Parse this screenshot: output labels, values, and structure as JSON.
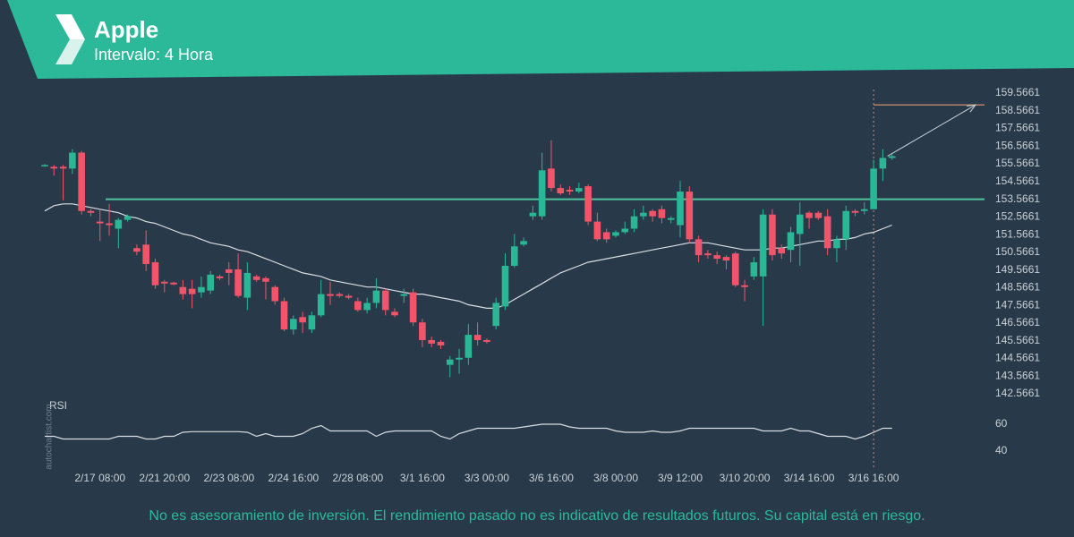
{
  "chart_data": {
    "type": "candlestick",
    "title": "Apple",
    "subtitle": "Intervalo: 4 Hora",
    "up_color": "#2ab795",
    "down_color": "#f2546a",
    "ylim": [
      142.36,
      159.77
    ],
    "yticks": [
      159.5661,
      158.5661,
      157.5661,
      156.5661,
      155.5661,
      154.5661,
      153.5661,
      152.5661,
      151.5661,
      150.5661,
      149.5661,
      148.5661,
      147.5661,
      146.5661,
      145.5661,
      144.5661,
      143.5661,
      142.5661
    ],
    "categories": [
      null,
      null,
      null,
      null,
      null,
      null,
      "2/17 08:00",
      null,
      null,
      null,
      null,
      null,
      null,
      "2/21 20:00",
      null,
      null,
      null,
      null,
      null,
      null,
      "2/23 08:00",
      null,
      null,
      null,
      null,
      null,
      null,
      "2/24 16:00",
      null,
      null,
      null,
      null,
      null,
      null,
      "2/28 08:00",
      null,
      null,
      null,
      null,
      null,
      null,
      "3/1 16:00",
      null,
      null,
      null,
      null,
      null,
      null,
      "3/3 00:00",
      null,
      null,
      null,
      null,
      null,
      null,
      "3/6 16:00",
      null,
      null,
      null,
      null,
      null,
      null,
      "3/8 00:00",
      null,
      null,
      null,
      null,
      null,
      null,
      "3/9 12:00",
      null,
      null,
      null,
      null,
      null,
      null,
      "3/10 20:00",
      null,
      null,
      null,
      null,
      null,
      null,
      "3/14 16:00",
      null,
      null,
      null,
      null,
      null,
      null,
      "3/16 16:00",
      null,
      null
    ],
    "candles": [
      {
        "o": 155.45,
        "h": 155.55,
        "l": 155.4,
        "c": 155.5
      },
      {
        "o": 155.4,
        "h": 155.5,
        "l": 154.9,
        "c": 155.3
      },
      {
        "o": 155.4,
        "h": 155.5,
        "l": 153.5,
        "c": 155.3
      },
      {
        "o": 155.3,
        "h": 156.4,
        "l": 155.0,
        "c": 156.2
      },
      {
        "o": 156.2,
        "h": 156.3,
        "l": 152.7,
        "c": 152.9
      },
      {
        "o": 152.9,
        "h": 153.0,
        "l": 152.6,
        "c": 152.8
      },
      {
        "o": 152.3,
        "h": 153.0,
        "l": 151.2,
        "c": 152.2
      },
      {
        "o": 152.2,
        "h": 153.3,
        "l": 151.5,
        "c": 152.1
      },
      {
        "o": 151.9,
        "h": 152.5,
        "l": 150.8,
        "c": 152.4
      },
      {
        "o": 152.4,
        "h": 152.7,
        "l": 152.3,
        "c": 152.6
      },
      {
        "o": 150.8,
        "h": 151.0,
        "l": 150.4,
        "c": 150.6
      },
      {
        "o": 151.0,
        "h": 151.8,
        "l": 149.5,
        "c": 149.9
      },
      {
        "o": 150.0,
        "h": 150.2,
        "l": 148.5,
        "c": 148.7
      },
      {
        "o": 148.9,
        "h": 149.0,
        "l": 148.3,
        "c": 148.8
      },
      {
        "o": 148.85,
        "h": 148.9,
        "l": 148.7,
        "c": 148.75
      },
      {
        "o": 148.6,
        "h": 149.0,
        "l": 147.9,
        "c": 148.2
      },
      {
        "o": 148.5,
        "h": 149.0,
        "l": 147.4,
        "c": 148.2
      },
      {
        "o": 148.3,
        "h": 149.2,
        "l": 148.0,
        "c": 148.6
      },
      {
        "o": 148.4,
        "h": 149.5,
        "l": 148.2,
        "c": 149.3
      },
      {
        "o": 149.2,
        "h": 149.3,
        "l": 149.0,
        "c": 149.1
      },
      {
        "o": 149.6,
        "h": 150.0,
        "l": 148.7,
        "c": 149.4
      },
      {
        "o": 149.6,
        "h": 150.5,
        "l": 148.0,
        "c": 148.1
      },
      {
        "o": 148.0,
        "h": 150.0,
        "l": 147.3,
        "c": 149.4
      },
      {
        "o": 149.2,
        "h": 149.3,
        "l": 148.9,
        "c": 149.0
      },
      {
        "o": 149.1,
        "h": 149.2,
        "l": 147.9,
        "c": 148.9
      },
      {
        "o": 148.6,
        "h": 148.7,
        "l": 147.6,
        "c": 147.8
      },
      {
        "o": 147.8,
        "h": 148.0,
        "l": 146.1,
        "c": 146.2
      },
      {
        "o": 146.2,
        "h": 147.0,
        "l": 145.9,
        "c": 146.8
      },
      {
        "o": 146.9,
        "h": 147.2,
        "l": 146.0,
        "c": 146.6
      },
      {
        "o": 146.2,
        "h": 147.2,
        "l": 146.0,
        "c": 147.0
      },
      {
        "o": 147.0,
        "h": 149.0,
        "l": 146.9,
        "c": 148.2
      },
      {
        "o": 148.2,
        "h": 148.9,
        "l": 147.6,
        "c": 148.1
      },
      {
        "o": 148.2,
        "h": 148.3,
        "l": 148.0,
        "c": 148.1
      },
      {
        "o": 148.1,
        "h": 148.2,
        "l": 147.9,
        "c": 148.0
      },
      {
        "o": 147.8,
        "h": 148.0,
        "l": 147.2,
        "c": 147.3
      },
      {
        "o": 147.3,
        "h": 148.0,
        "l": 147.1,
        "c": 147.7
      },
      {
        "o": 147.7,
        "h": 149.1,
        "l": 147.4,
        "c": 148.4
      },
      {
        "o": 148.4,
        "h": 148.5,
        "l": 147.0,
        "c": 147.3
      },
      {
        "o": 147.2,
        "h": 147.4,
        "l": 146.9,
        "c": 147.0
      },
      {
        "o": 148.1,
        "h": 148.5,
        "l": 147.7,
        "c": 148.2
      },
      {
        "o": 148.3,
        "h": 148.5,
        "l": 146.4,
        "c": 146.6
      },
      {
        "o": 146.6,
        "h": 146.8,
        "l": 145.2,
        "c": 145.6
      },
      {
        "o": 145.6,
        "h": 145.8,
        "l": 145.2,
        "c": 145.4
      },
      {
        "o": 145.5,
        "h": 145.6,
        "l": 145.1,
        "c": 145.3
      },
      {
        "o": 144.2,
        "h": 144.7,
        "l": 143.5,
        "c": 144.5
      },
      {
        "o": 144.5,
        "h": 145.1,
        "l": 143.7,
        "c": 144.6
      },
      {
        "o": 144.6,
        "h": 146.5,
        "l": 144.2,
        "c": 145.9
      },
      {
        "o": 145.9,
        "h": 146.6,
        "l": 145.3,
        "c": 145.6
      },
      {
        "o": 145.6,
        "h": 145.7,
        "l": 145.4,
        "c": 145.5
      },
      {
        "o": 146.4,
        "h": 148.0,
        "l": 146.2,
        "c": 147.7
      },
      {
        "o": 147.5,
        "h": 150.5,
        "l": 147.3,
        "c": 149.8
      },
      {
        "o": 149.8,
        "h": 151.6,
        "l": 149.7,
        "c": 150.9
      },
      {
        "o": 151.0,
        "h": 151.4,
        "l": 150.9,
        "c": 151.2
      },
      {
        "o": 152.6,
        "h": 153.2,
        "l": 152.4,
        "c": 152.8
      },
      {
        "o": 152.6,
        "h": 156.2,
        "l": 152.4,
        "c": 155.2
      },
      {
        "o": 155.3,
        "h": 156.9,
        "l": 154.0,
        "c": 154.2
      },
      {
        "o": 154.2,
        "h": 154.4,
        "l": 153.8,
        "c": 153.9
      },
      {
        "o": 154.1,
        "h": 154.3,
        "l": 153.8,
        "c": 154.0
      },
      {
        "o": 154.0,
        "h": 154.5,
        "l": 153.9,
        "c": 154.2
      },
      {
        "o": 154.3,
        "h": 154.4,
        "l": 152.1,
        "c": 152.3
      },
      {
        "o": 152.3,
        "h": 152.8,
        "l": 151.2,
        "c": 151.3
      },
      {
        "o": 151.7,
        "h": 151.9,
        "l": 151.1,
        "c": 151.3
      },
      {
        "o": 151.5,
        "h": 151.8,
        "l": 151.4,
        "c": 151.7
      },
      {
        "o": 151.7,
        "h": 152.3,
        "l": 151.6,
        "c": 151.9
      },
      {
        "o": 151.9,
        "h": 153.0,
        "l": 151.7,
        "c": 152.6
      },
      {
        "o": 152.6,
        "h": 153.2,
        "l": 152.4,
        "c": 152.8
      },
      {
        "o": 152.9,
        "h": 153.0,
        "l": 152.3,
        "c": 152.6
      },
      {
        "o": 153.0,
        "h": 153.2,
        "l": 152.2,
        "c": 152.5
      },
      {
        "o": 152.4,
        "h": 152.6,
        "l": 152.2,
        "c": 152.5
      },
      {
        "o": 152.1,
        "h": 154.6,
        "l": 151.4,
        "c": 154.0
      },
      {
        "o": 154.0,
        "h": 154.3,
        "l": 151.1,
        "c": 151.3
      },
      {
        "o": 151.3,
        "h": 151.5,
        "l": 150.0,
        "c": 150.4
      },
      {
        "o": 150.5,
        "h": 150.7,
        "l": 150.2,
        "c": 150.4
      },
      {
        "o": 150.4,
        "h": 150.6,
        "l": 149.9,
        "c": 150.2
      },
      {
        "o": 150.3,
        "h": 150.4,
        "l": 149.6,
        "c": 150.1
      },
      {
        "o": 150.5,
        "h": 150.6,
        "l": 148.6,
        "c": 148.7
      },
      {
        "o": 148.7,
        "h": 149.0,
        "l": 147.8,
        "c": 148.6
      },
      {
        "o": 149.2,
        "h": 150.3,
        "l": 149.0,
        "c": 150.0
      },
      {
        "o": 149.2,
        "h": 153.0,
        "l": 146.4,
        "c": 152.7
      },
      {
        "o": 152.7,
        "h": 153.0,
        "l": 150.1,
        "c": 150.4
      },
      {
        "o": 150.8,
        "h": 151.0,
        "l": 150.2,
        "c": 150.5
      },
      {
        "o": 150.7,
        "h": 152.0,
        "l": 150.0,
        "c": 151.7
      },
      {
        "o": 151.6,
        "h": 153.4,
        "l": 149.8,
        "c": 152.7
      },
      {
        "o": 152.8,
        "h": 152.9,
        "l": 151.9,
        "c": 152.5
      },
      {
        "o": 152.8,
        "h": 152.9,
        "l": 152.4,
        "c": 152.5
      },
      {
        "o": 152.6,
        "h": 153.0,
        "l": 150.4,
        "c": 150.8
      },
      {
        "o": 150.8,
        "h": 151.5,
        "l": 150.0,
        "c": 151.3
      },
      {
        "o": 151.3,
        "h": 153.2,
        "l": 150.7,
        "c": 152.9
      },
      {
        "o": 152.9,
        "h": 153.0,
        "l": 152.6,
        "c": 152.8
      },
      {
        "o": 152.9,
        "h": 153.4,
        "l": 152.7,
        "c": 153.0
      },
      {
        "o": 153.0,
        "h": 155.8,
        "l": 153.0,
        "c": 155.3
      },
      {
        "o": 155.3,
        "h": 156.4,
        "l": 154.6,
        "c": 155.9
      },
      {
        "o": 155.9,
        "h": 156.1,
        "l": 155.8,
        "c": 156.0
      }
    ],
    "moving_average": {
      "color": "#d8dde2",
      "values": [
        152.9,
        153.2,
        153.3,
        153.3,
        153.2,
        153.1,
        153.0,
        152.9,
        152.8,
        152.6,
        152.5,
        152.3,
        152.2,
        152.0,
        151.8,
        151.6,
        151.5,
        151.3,
        151.1,
        151.0,
        150.9,
        150.7,
        150.6,
        150.4,
        150.2,
        150.0,
        149.8,
        149.6,
        149.4,
        149.3,
        149.2,
        149.0,
        148.9,
        148.8,
        148.7,
        148.6,
        148.6,
        148.5,
        148.4,
        148.3,
        148.2,
        148.2,
        148.1,
        148.0,
        147.9,
        147.8,
        147.6,
        147.5,
        147.4,
        147.4,
        147.6,
        147.9,
        148.2,
        148.5,
        148.8,
        149.1,
        149.4,
        149.6,
        149.8,
        150.0,
        150.1,
        150.2,
        150.3,
        150.4,
        150.5,
        150.6,
        150.7,
        150.8,
        150.9,
        151.0,
        151.1,
        151.1,
        151.1,
        151.0,
        150.9,
        150.8,
        150.7,
        150.7,
        150.7,
        150.8,
        150.8,
        150.9,
        151.0,
        151.1,
        151.2,
        151.2,
        151.3,
        151.3,
        151.4,
        151.6,
        151.7,
        151.9,
        152.1
      ]
    },
    "resistance": {
      "value": 153.5661,
      "color": "#4fc39d"
    },
    "target": {
      "value": 158.9,
      "color": "#e59470"
    },
    "signal_at": "3/16 16:00",
    "rsi": {
      "type": "line",
      "label": "RSI",
      "color": "#d8dde2",
      "ylim": [
        34,
        72
      ],
      "yticks": [
        60,
        40
      ],
      "values": [
        51,
        51,
        49,
        49,
        49,
        49,
        49,
        49,
        51,
        51,
        51,
        49,
        49,
        51,
        51,
        54,
        54.5,
        54.5,
        54.5,
        54.5,
        54.5,
        54.5,
        54,
        51,
        53,
        51,
        51,
        51,
        53,
        57,
        59,
        55,
        55,
        55,
        55,
        55,
        51,
        54,
        55,
        55,
        55,
        55,
        55,
        51,
        49,
        53,
        55,
        57,
        57,
        57,
        57,
        57,
        58,
        59,
        60,
        60,
        60,
        58,
        57,
        57,
        57,
        57,
        55,
        54,
        54,
        54,
        55,
        54,
        54,
        55,
        57,
        57,
        57,
        57,
        57,
        57,
        57,
        57,
        55,
        55,
        55,
        57,
        55,
        55,
        53,
        51,
        51,
        51,
        49,
        51,
        54,
        57,
        57
      ]
    },
    "watermark": "autochartist.com",
    "disclaimer": "No es asesoramiento de inversión. El rendimiento pasado no es indicativo de resultados futuros. Su capital está en riesgo."
  }
}
